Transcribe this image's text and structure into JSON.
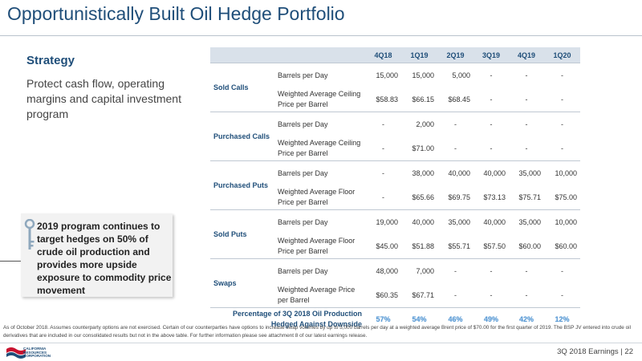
{
  "title": "Opportunistically Built Oil Hedge Portfolio",
  "strategy": {
    "heading": "Strategy",
    "text": "Protect cash flow, operating margins and capital investment program"
  },
  "callout": {
    "text": "2019 program continues to target hedges on 50% of crude oil production and provides more upside exposure to commodity price movement"
  },
  "table": {
    "columns": [
      "4Q18",
      "1Q19",
      "2Q19",
      "3Q19",
      "4Q19",
      "1Q20"
    ],
    "groups": [
      {
        "name": "Sold Calls",
        "rows": [
          {
            "metric": "Barrels per Day",
            "values": [
              "15,000",
              "15,000",
              "5,000",
              "-",
              "-",
              "-"
            ]
          },
          {
            "metric": "Weighted Average Ceiling Price per Barrel",
            "values": [
              "$58.83",
              "$66.15",
              "$68.45",
              "-",
              "-",
              "-"
            ]
          }
        ]
      },
      {
        "name": "Purchased Calls",
        "rows": [
          {
            "metric": "Barrels per Day",
            "values": [
              "-",
              "2,000",
              "-",
              "-",
              "-",
              "-"
            ]
          },
          {
            "metric": "Weighted Average Ceiling Price per Barrel",
            "values": [
              "-",
              "$71.00",
              "-",
              "-",
              "-",
              "-"
            ]
          }
        ]
      },
      {
        "name": "Purchased Puts",
        "rows": [
          {
            "metric": "Barrels per Day",
            "values": [
              "-",
              "38,000",
              "40,000",
              "40,000",
              "35,000",
              "10,000"
            ]
          },
          {
            "metric": "Weighted Average Floor Price per Barrel",
            "values": [
              "-",
              "$65.66",
              "$69.75",
              "$73.13",
              "$75.71",
              "$75.00"
            ]
          }
        ]
      },
      {
        "name": "Sold Puts",
        "rows": [
          {
            "metric": "Barrels per Day",
            "values": [
              "19,000",
              "40,000",
              "35,000",
              "40,000",
              "35,000",
              "10,000"
            ]
          },
          {
            "metric": "Weighted Average Floor Price per Barrel",
            "values": [
              "$45.00",
              "$51.88",
              "$55.71",
              "$57.50",
              "$60.00",
              "$60.00"
            ]
          }
        ]
      },
      {
        "name": "Swaps",
        "rows": [
          {
            "metric": "Barrels per Day",
            "values": [
              "48,000",
              "7,000",
              "-",
              "-",
              "-",
              "-"
            ]
          },
          {
            "metric": "Weighted Average Price per Barrel",
            "values": [
              "$60.35",
              "$67.71",
              "-",
              "-",
              "-",
              "-"
            ]
          }
        ]
      }
    ],
    "footer": {
      "label": "Percentage of 3Q 2018 Oil Production Hedged Against Downside",
      "values": [
        "57%",
        "54%",
        "46%",
        "49%",
        "42%",
        "12%"
      ]
    }
  },
  "footnote": "As of October 2018. Assumes counterparty options are not exercised. Certain of our counterparties have options to increase swap volumes by up to 5,000 barrels per day at a weighted average Brent price of $70.00 for the first quarter of 2019. The BSP JV entered into crude oil derivatives that are included in our consolidated results but not in the above table. For further information please see attachment 8 of our latest earnings release.",
  "footer": {
    "page_label": "3Q 2018 Earnings  |  22",
    "logo_lines": [
      "CALIFORNIA",
      "RESOURCES",
      "CORPORATION"
    ]
  },
  "colors": {
    "title": "#1f4e79",
    "header_bg": "#d9e1ea",
    "percent": "#5b9bd5",
    "logo_red": "#c8102e",
    "logo_blue": "#1f4e79"
  }
}
